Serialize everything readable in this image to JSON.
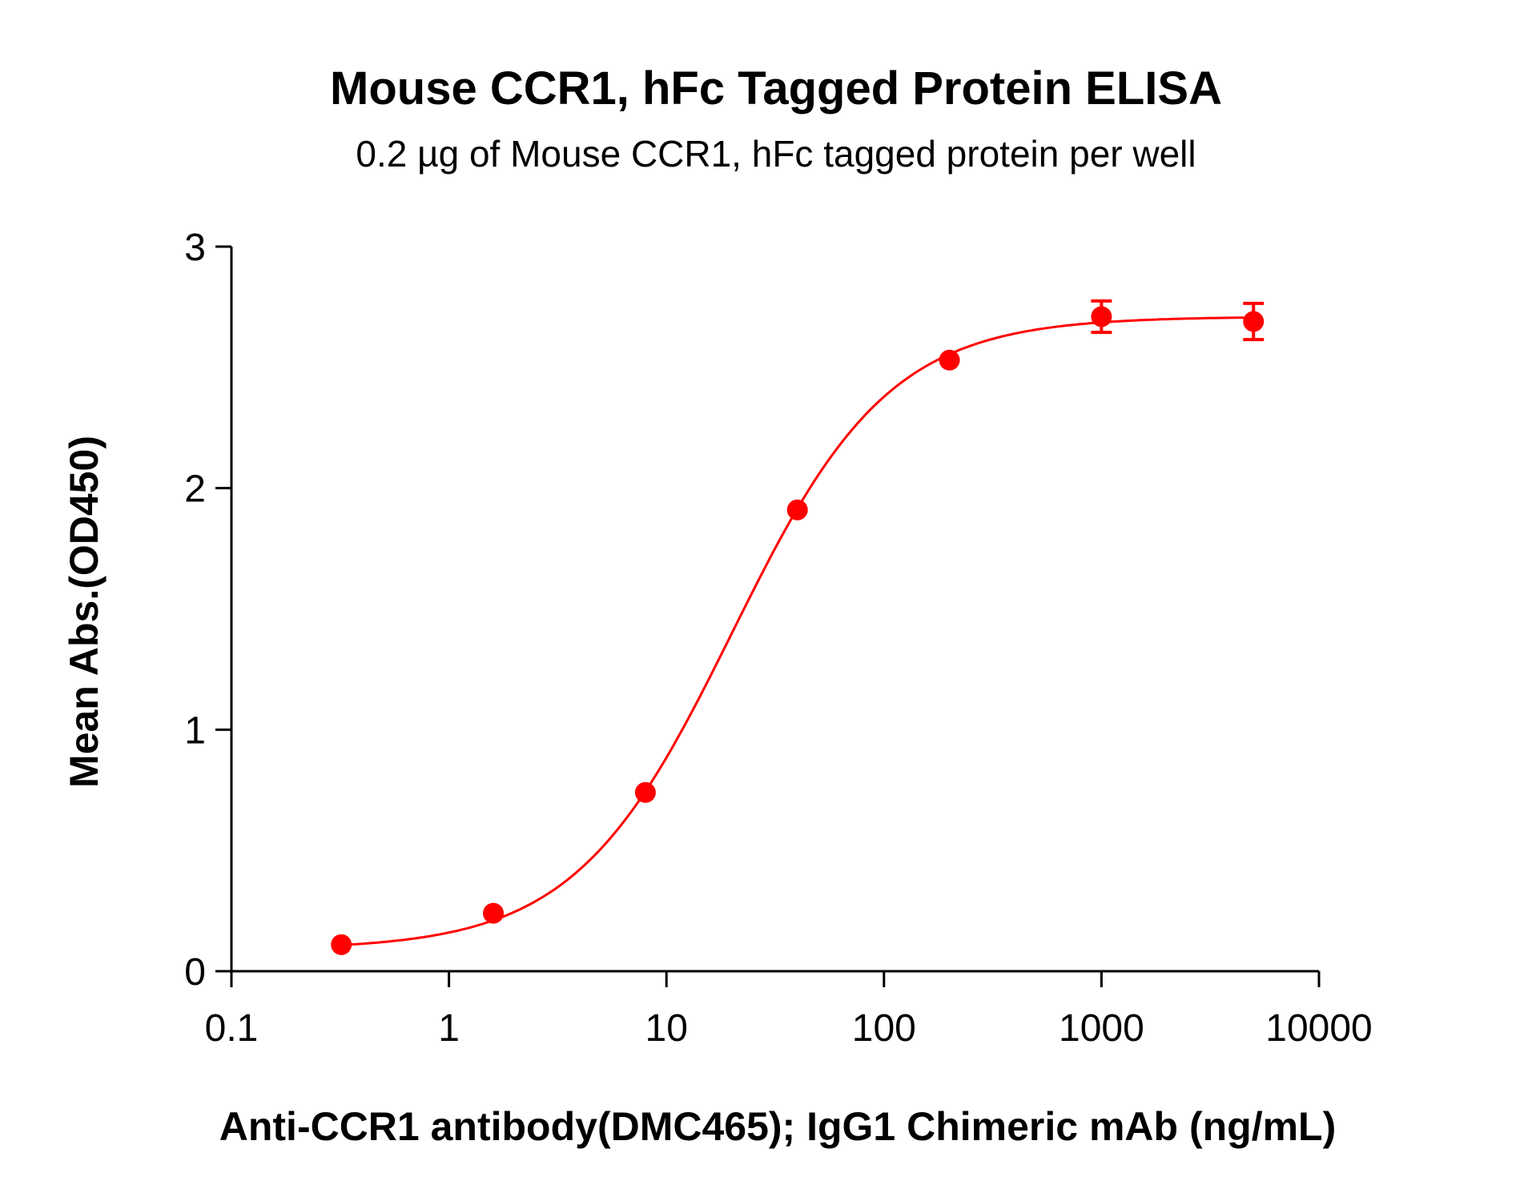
{
  "chart_data": {
    "type": "scatter",
    "title": "Mouse CCR1, hFc Tagged Protein ELISA",
    "subtitle": "0.2 µg of Mouse CCR1, hFc tagged protein per well",
    "xlabel": "Anti-CCR1 antibody(DMC465); IgG1 Chimeric mAb (ng/mL)",
    "ylabel": "Mean Abs.(OD450)",
    "xscale": "log",
    "xlim": [
      0.1,
      10000
    ],
    "ylim": [
      0,
      3
    ],
    "xticks": [
      "0.1",
      "1",
      "10",
      "100",
      "1000",
      "10000"
    ],
    "yticks": [
      "0",
      "1",
      "2",
      "3"
    ],
    "grid": false,
    "color": "#ff0000",
    "series": [
      {
        "x": [
          0.32,
          1.6,
          8,
          40,
          200,
          1000,
          5000
        ],
        "y": [
          0.11,
          0.24,
          0.74,
          1.91,
          2.53,
          2.71,
          2.69
        ],
        "error": [
          0.01,
          0.01,
          0.01,
          0.02,
          0.02,
          0.065,
          0.075
        ]
      }
    ],
    "fit": {
      "type": "4PL",
      "bottom": 0.09,
      "top": 2.71,
      "ec50": 20,
      "hill": 1.2
    }
  }
}
